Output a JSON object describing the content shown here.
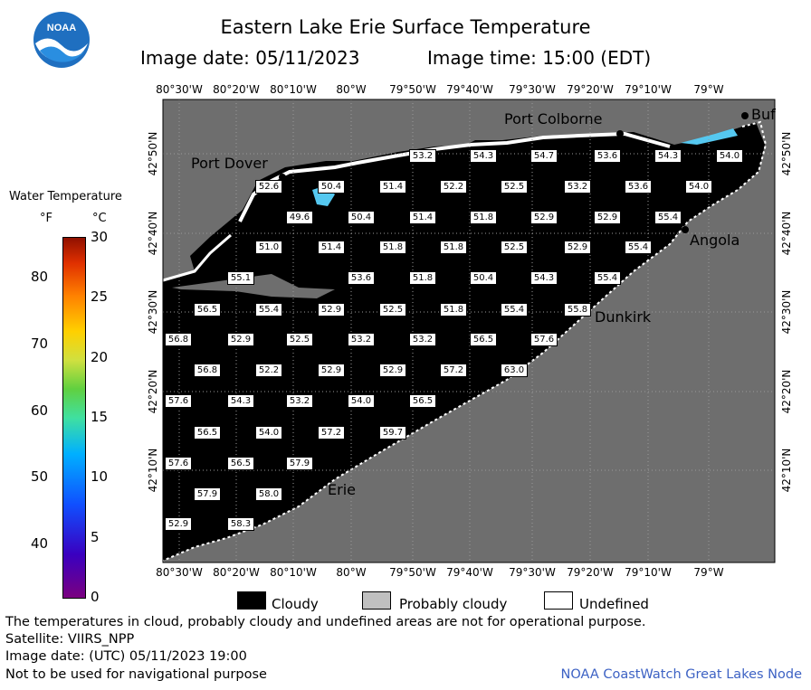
{
  "header": {
    "title": "Eastern Lake Erie Surface Temperature",
    "image_date": "Image date: 05/11/2023",
    "image_time": "Image time: 15:00 (EDT)",
    "logo_text": "NOAA"
  },
  "axes": {
    "lon_labels": [
      "80°30'W",
      "80°20'W",
      "80°10'W",
      "80°W",
      "79°50'W",
      "79°40'W",
      "79°30'W",
      "79°20'W",
      "79°10'W",
      "79°W"
    ],
    "lat_labels": [
      "42°50'N",
      "42°40'N",
      "42°30'N",
      "42°20'N",
      "42°10'N"
    ]
  },
  "places": [
    "Port Colborne",
    "Port Dover",
    "Angola",
    "Dunkirk",
    "Erie",
    "Buf"
  ],
  "temperatures": [
    {
      "row": "r0",
      "cells": [
        "53.2",
        "54.3",
        "54.7",
        "53.6",
        "54.3",
        "54.0"
      ]
    },
    {
      "row": "r1",
      "cells": [
        "52.6",
        "50.4",
        "51.4",
        "52.2",
        "52.5",
        "53.2",
        "53.6",
        "54.0"
      ]
    },
    {
      "row": "r2",
      "cells": [
        "49.6",
        "50.4",
        "51.4",
        "51.8",
        "52.9",
        "52.9",
        "55.4"
      ]
    },
    {
      "row": "r3",
      "cells": [
        "51.0",
        "51.4",
        "51.8",
        "51.8",
        "52.5",
        "52.9",
        "55.4"
      ]
    },
    {
      "row": "r4",
      "cells": [
        "55.1",
        "53.6",
        "51.8",
        "50.4",
        "54.3",
        "55.4"
      ]
    },
    {
      "row": "r5",
      "cells": [
        "56.5",
        "55.4",
        "52.9",
        "52.5",
        "51.8",
        "55.4",
        "55.8"
      ]
    },
    {
      "row": "r6",
      "cells": [
        "56.8",
        "52.9",
        "52.5",
        "53.2",
        "53.2",
        "56.5",
        "57.6"
      ]
    },
    {
      "row": "r7",
      "cells": [
        "56.8",
        "52.2",
        "52.9",
        "52.9",
        "57.2",
        "63.0"
      ]
    },
    {
      "row": "r8",
      "cells": [
        "57.6",
        "54.3",
        "53.2",
        "54.0",
        "56.5"
      ]
    },
    {
      "row": "r9",
      "cells": [
        "56.5",
        "54.0",
        "57.2",
        "59.7"
      ]
    },
    {
      "row": "r10",
      "cells": [
        "57.6",
        "56.5",
        "57.9"
      ]
    },
    {
      "row": "r11",
      "cells": [
        "57.9",
        "58.0"
      ]
    },
    {
      "row": "r12",
      "cells": [
        "52.9",
        "58.3"
      ]
    }
  ],
  "colorbar": {
    "title": "Water Temperature",
    "unit_f": "°F",
    "unit_c": "°C",
    "f_ticks": [
      "80",
      "70",
      "60",
      "50",
      "40"
    ],
    "c_ticks": [
      "30",
      "25",
      "20",
      "15",
      "10",
      "5",
      "0"
    ]
  },
  "legend": {
    "cloudy": "Cloudy",
    "probably_cloudy": "Probably cloudy",
    "undefined": "Undefined",
    "colors": {
      "cloudy": "#000000",
      "probably_cloudy": "#c0c0c0",
      "undefined": "#ffffff"
    }
  },
  "notes": {
    "line1": "The temperatures in cloud, probably cloudy and undefined areas are not for operational purpose.",
    "line2": "Satellite: VIIRS_NPP",
    "line3": "Image date: (UTC) 05/11/2023  19:00",
    "line4": "Not to be used for navigational purpose",
    "credit": "NOAA CoastWatch Great Lakes Node"
  },
  "colors": {
    "land": "#6e6e6e",
    "lake_cloud": "#000000",
    "clear_water": "#55c8f0",
    "credit": "#3d62c4"
  }
}
